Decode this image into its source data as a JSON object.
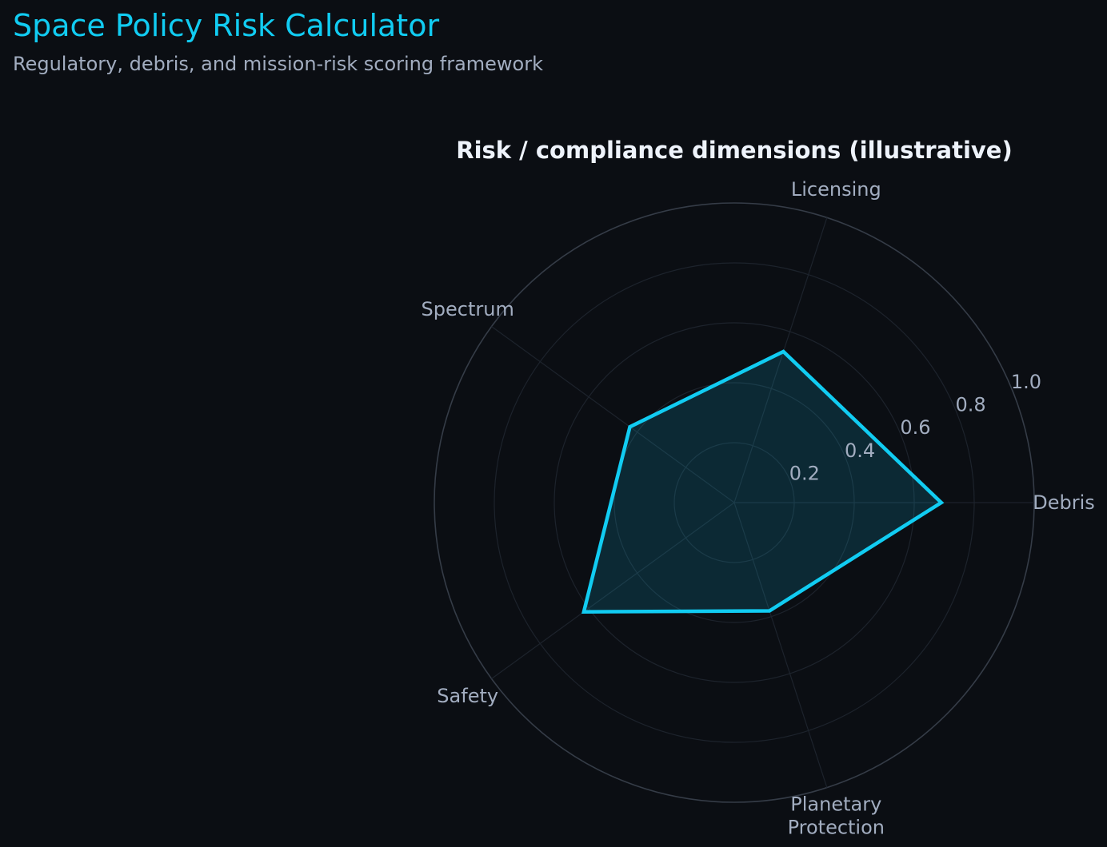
{
  "header": {
    "title": "Space Policy Risk Calculator",
    "subtitle": "Regulatory, debris, and mission-risk scoring framework"
  },
  "colors": {
    "background": "#0b0e13",
    "accent": "#11ccf2",
    "fill": "#0a2630",
    "grid": "#2b323c",
    "text_muted": "#a2adc0",
    "text_title": "#eef3fb"
  },
  "chart_data": {
    "type": "radar",
    "title": "Risk / compliance dimensions (illustrative)",
    "axes": [
      "Debris",
      "Licensing",
      "Spectrum",
      "Safety",
      [
        "Planetary",
        "Protection"
      ]
    ],
    "values": [
      0.69,
      0.53,
      0.43,
      0.62,
      0.38
    ],
    "rlim": [
      0,
      1.0
    ],
    "rticks": [
      0.2,
      0.4,
      0.6,
      0.8,
      1.0
    ],
    "rtick_labels": [
      "0.2",
      "0.4",
      "0.6",
      "0.8",
      "1.0"
    ],
    "grid": true
  }
}
